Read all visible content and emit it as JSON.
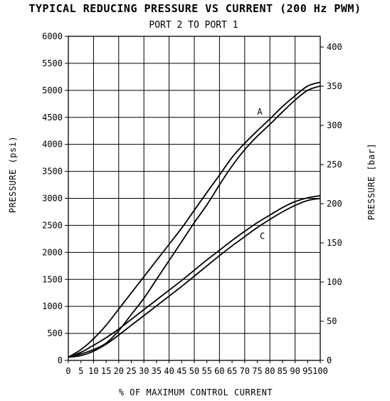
{
  "chart_data": {
    "type": "line",
    "title": "TYPICAL REDUCING PRESSURE VS CURRENT (200 Hz PWM)",
    "subtitle": "PORT 2 TO PORT 1",
    "xlabel": "% OF MAXIMUM CONTROL CURRENT",
    "ylabel": "PRESSURE (psi)",
    "ylabel_right": "PRESSURE [bar]",
    "xlim": [
      0,
      100
    ],
    "ylim": [
      0,
      6000
    ],
    "ylim_right": [
      0,
      413.7
    ],
    "x_ticks": [
      "0",
      "10",
      "20",
      "30",
      "40",
      "50",
      "60",
      "70",
      "80",
      "90",
      "100"
    ],
    "x_tick_values": [
      0,
      5,
      10,
      15,
      20,
      25,
      30,
      35,
      40,
      45,
      50,
      55,
      60,
      65,
      70,
      75,
      80,
      85,
      90,
      95,
      100
    ],
    "x_tick_labels": [
      "0",
      "5",
      "10",
      "15",
      "20",
      "25",
      "30",
      "35",
      "40",
      "45",
      "50",
      "55",
      "60",
      "65",
      "70",
      "75",
      "80",
      "85",
      "90",
      "95",
      "100"
    ],
    "y_tick_labels": [
      "0",
      "500",
      "1000",
      "1500",
      "2000",
      "2500",
      "3000",
      "3500",
      "4000",
      "4500",
      "5000",
      "5500",
      "6000"
    ],
    "y_tick_values": [
      0,
      500,
      1000,
      1500,
      2000,
      2500,
      3000,
      3500,
      4000,
      4500,
      5000,
      5500,
      6000
    ],
    "y_right_tick_labels": [
      "0",
      "50",
      "100",
      "150",
      "200",
      "250",
      "300",
      "350",
      "400"
    ],
    "y_right_tick_values": [
      0,
      50,
      100,
      150,
      200,
      250,
      300,
      350,
      400
    ],
    "grid": true,
    "series": [
      {
        "name": "A",
        "label_at": [
          76,
          4550
        ],
        "x": [
          0,
          5,
          10,
          15,
          20,
          25,
          30,
          35,
          40,
          45,
          50,
          55,
          60,
          65,
          70,
          75,
          80,
          85,
          90,
          95,
          100
        ],
        "upper": [
          60,
          200,
          400,
          650,
          950,
          1250,
          1550,
          1850,
          2150,
          2450,
          2780,
          3110,
          3430,
          3760,
          4020,
          4250,
          4470,
          4700,
          4900,
          5080,
          5150
        ],
        "lower": [
          60,
          120,
          200,
          320,
          550,
          850,
          1150,
          1500,
          1850,
          2200,
          2550,
          2880,
          3250,
          3600,
          3900,
          4150,
          4370,
          4600,
          4820,
          5000,
          5080
        ]
      },
      {
        "name": "C",
        "label_at": [
          77,
          2250
        ],
        "x": [
          0,
          5,
          10,
          15,
          20,
          25,
          30,
          35,
          40,
          45,
          50,
          55,
          60,
          65,
          70,
          75,
          80,
          85,
          90,
          95,
          100
        ],
        "upper": [
          60,
          150,
          280,
          420,
          580,
          760,
          940,
          1120,
          1300,
          1480,
          1670,
          1860,
          2040,
          2220,
          2390,
          2550,
          2690,
          2830,
          2940,
          3010,
          3050
        ],
        "lower": [
          60,
          90,
          170,
          300,
          470,
          650,
          830,
          1010,
          1190,
          1370,
          1560,
          1750,
          1940,
          2120,
          2290,
          2460,
          2610,
          2750,
          2870,
          2960,
          3000
        ]
      }
    ]
  }
}
